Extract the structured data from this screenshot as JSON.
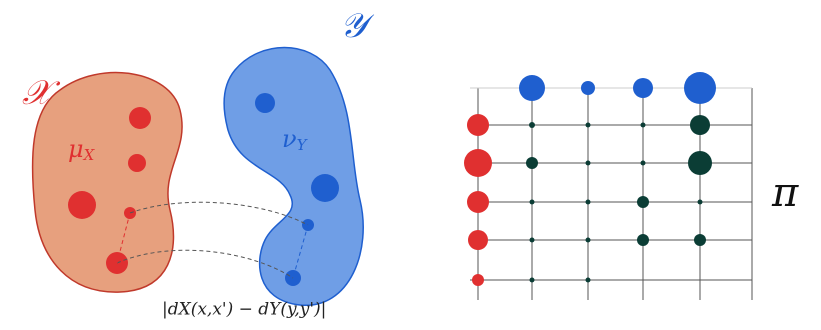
{
  "space_x": {
    "symbol": "𝒳",
    "measure": "μ",
    "measure_sub": "X"
  },
  "space_y": {
    "symbol": "𝒴",
    "measure": "ν",
    "measure_sub": "Y"
  },
  "distortion": {
    "label": "|dX(x,x') − dY(y,y')|"
  },
  "coupling": {
    "symbol": "π"
  }
}
